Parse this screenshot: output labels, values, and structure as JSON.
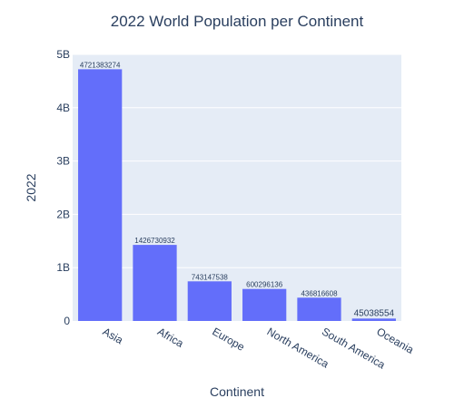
{
  "chart_data": {
    "type": "bar",
    "title": "2022 World Population per Continent",
    "xlabel": "Continent",
    "ylabel": "2022",
    "categories": [
      "Asia",
      "Africa",
      "Europe",
      "North America",
      "South America",
      "Oceania"
    ],
    "values": [
      4721383274,
      1426730932,
      743147538,
      600296136,
      436816608,
      45038554
    ],
    "value_labels": [
      "4721383274",
      "1426730932",
      "743147538",
      "600296136",
      "436816608",
      "45038554"
    ],
    "ylim": [
      0,
      5000000000
    ],
    "y_ticks": [
      {
        "value": 0,
        "label": "0"
      },
      {
        "value": 1000000000,
        "label": "1B"
      },
      {
        "value": 2000000000,
        "label": "2B"
      },
      {
        "value": 3000000000,
        "label": "3B"
      },
      {
        "value": 4000000000,
        "label": "4B"
      },
      {
        "value": 5000000000,
        "label": "5B"
      }
    ],
    "grid": true,
    "colors": {
      "bar": "#636efa",
      "plot_bg": "#e5ecf6",
      "grid": "#ffffff",
      "text": "#2a3f5f"
    }
  }
}
